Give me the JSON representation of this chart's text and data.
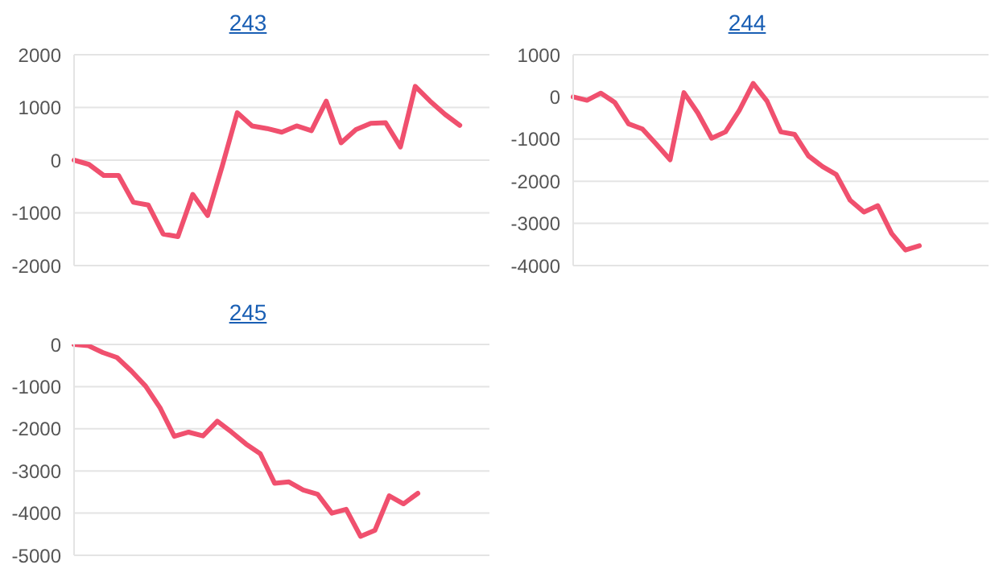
{
  "chart_data": [
    {
      "type": "line",
      "title": "243",
      "categories": [
        null,
        null,
        null,
        null,
        null,
        null,
        null,
        null,
        null,
        null,
        null,
        null,
        null,
        null,
        null,
        null,
        null,
        null,
        null,
        null,
        null,
        null,
        null,
        null,
        null,
        null,
        null,
        null,
        null
      ],
      "values": [
        0,
        -80,
        -290,
        -290,
        -800,
        -850,
        -1400,
        -1450,
        -650,
        -1050,
        -100,
        900,
        650,
        600,
        530,
        650,
        560,
        1120,
        330,
        580,
        700,
        710,
        250,
        1400,
        1120,
        870,
        660,
        null,
        null
      ],
      "color": "#f0506e",
      "ylim": [
        -2000,
        2000
      ],
      "yticks": [
        -2000,
        -1000,
        0,
        1000,
        2000
      ],
      "grid": "y",
      "tick_labels": "y",
      "marker": "none",
      "line_style": "solid"
    },
    {
      "type": "line",
      "title": "244",
      "categories": [
        null,
        null,
        null,
        null,
        null,
        null,
        null,
        null,
        null,
        null,
        null,
        null,
        null,
        null,
        null,
        null,
        null,
        null,
        null,
        null,
        null,
        null,
        null,
        null,
        null,
        null,
        null,
        null,
        null,
        null,
        null
      ],
      "values": [
        0,
        -80,
        90,
        -130,
        -640,
        -760,
        -1120,
        -1490,
        100,
        -380,
        -980,
        -830,
        -320,
        320,
        -100,
        -830,
        -890,
        -1400,
        -1650,
        -1840,
        -2450,
        -2730,
        -2580,
        -3240,
        -3630,
        -3530,
        null,
        null,
        null,
        null,
        null
      ],
      "color": "#f0506e",
      "ylim": [
        -4000,
        1000
      ],
      "yticks": [
        -4000,
        -3000,
        -2000,
        -1000,
        0,
        1000
      ],
      "grid": "y",
      "tick_labels": "y",
      "marker": "none",
      "line_style": "solid"
    },
    {
      "type": "line",
      "title": "245",
      "categories": [
        null,
        null,
        null,
        null,
        null,
        null,
        null,
        null,
        null,
        null,
        null,
        null,
        null,
        null,
        null,
        null,
        null,
        null,
        null,
        null,
        null,
        null,
        null,
        null,
        null,
        null,
        null,
        null,
        null,
        null
      ],
      "values": [
        0,
        -30,
        -190,
        -310,
        -630,
        -990,
        -1500,
        -2180,
        -2080,
        -2170,
        -1820,
        -2080,
        -2360,
        -2590,
        -3290,
        -3260,
        -3450,
        -3550,
        -4000,
        -3910,
        -4550,
        -4410,
        -3590,
        -3780,
        -3530,
        null,
        null,
        null,
        null,
        null
      ],
      "color": "#f0506e",
      "ylim": [
        -5000,
        0
      ],
      "yticks": [
        -5000,
        -4000,
        -3000,
        -2000,
        -1000,
        0
      ],
      "grid": "y",
      "tick_labels": "y",
      "marker": "none",
      "line_style": "solid"
    }
  ]
}
